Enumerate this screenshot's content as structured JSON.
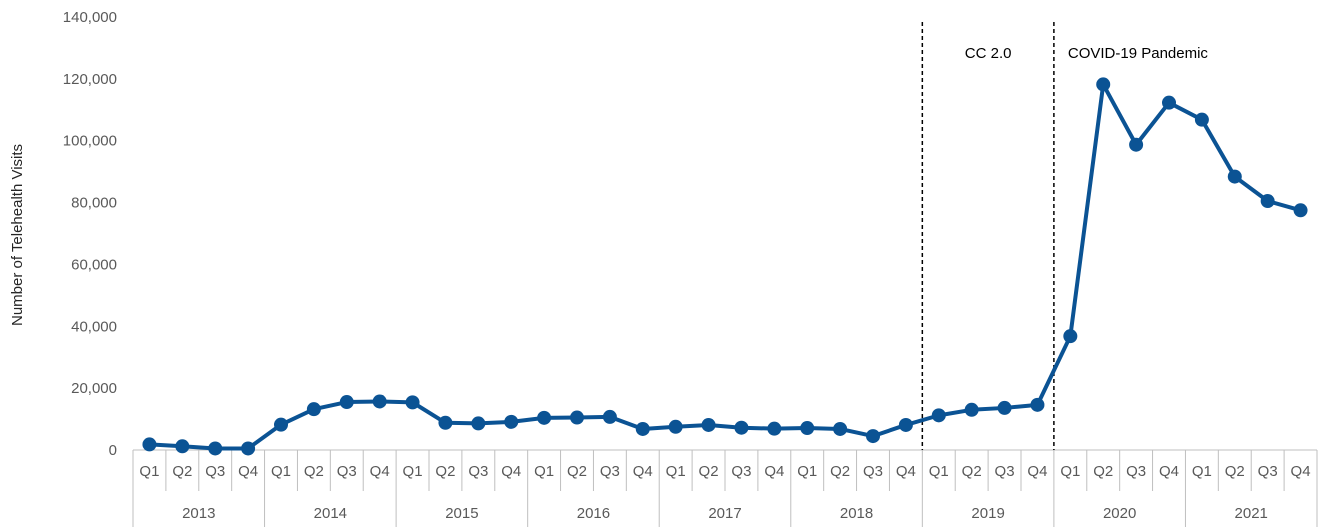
{
  "chart_data": {
    "type": "line",
    "title": "",
    "xlabel": "",
    "ylabel": "Number of Telehealth Visits",
    "ylim": [
      0,
      140000
    ],
    "yticks": [
      "0",
      "20,000",
      "40,000",
      "60,000",
      "80,000",
      "100,000",
      "120,000",
      "140,000"
    ],
    "ytick_values": [
      0,
      20000,
      40000,
      60000,
      80000,
      100000,
      120000,
      140000
    ],
    "grid": false,
    "legend": "none",
    "quarters": [
      "Q1",
      "Q2",
      "Q3",
      "Q4"
    ],
    "years": [
      "2013",
      "2014",
      "2015",
      "2016",
      "2017",
      "2018",
      "2019",
      "2020",
      "2021"
    ],
    "series": [
      {
        "color": "#0B5394",
        "values": [
          1800,
          1200,
          500,
          500,
          8200,
          13200,
          15500,
          15700,
          15400,
          8800,
          8600,
          9100,
          10400,
          10500,
          10700,
          6800,
          7500,
          8100,
          7200,
          6900,
          7100,
          6800,
          4500,
          8100,
          11200,
          13000,
          13600,
          14600,
          36800,
          118200,
          98700,
          112300,
          106800,
          88400,
          80500,
          77500
        ]
      }
    ],
    "annotations": [
      {
        "label": "CC 2.0",
        "after_index": 23
      },
      {
        "label": "COVID-19 Pandemic",
        "after_index": 27
      }
    ]
  }
}
